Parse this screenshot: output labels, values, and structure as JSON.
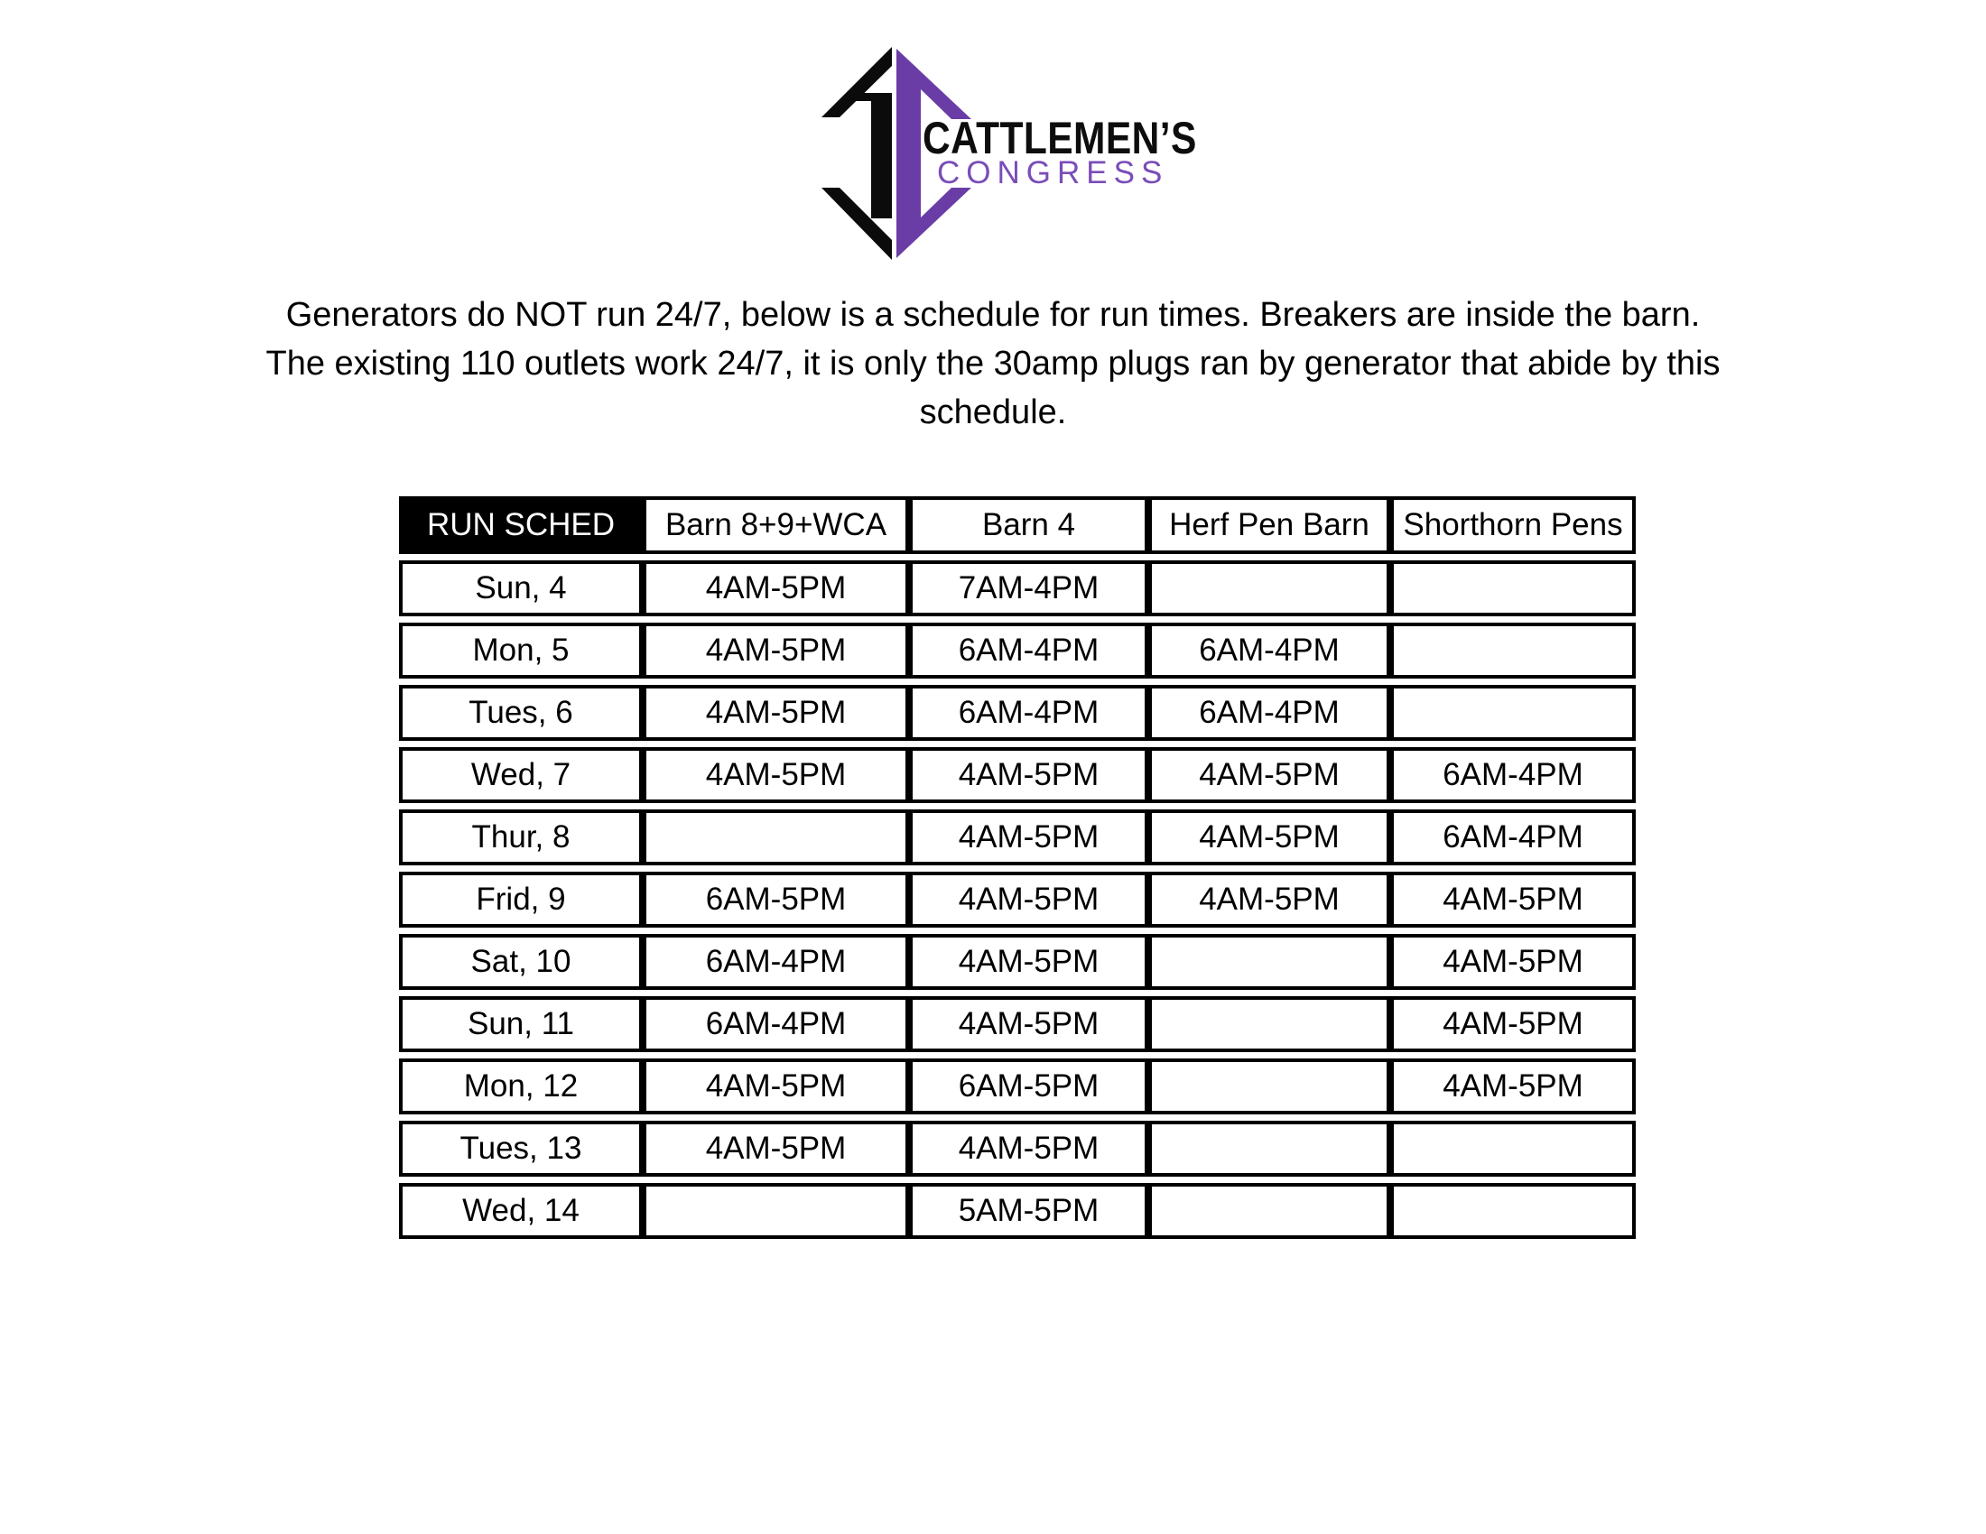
{
  "logo": {
    "brand_top": "CATTLEMEN’S",
    "brand_bottom": "CONGRESS",
    "mark_black": "#0b0b0b",
    "mark_purple": "#6a3da6",
    "congress_purple": "#7a4db8"
  },
  "intro": {
    "lines": [
      "Generators do NOT run 24/7, below is a schedule for run times. Breakers are inside the barn.",
      "The existing 110 outlets work 24/7, it is only the 30amp plugs ran by generator that abide by this",
      "schedule."
    ]
  },
  "table": {
    "headers": [
      "RUN SCHED",
      "Barn 8+9+WCA",
      "Barn 4",
      "Herf Pen Barn",
      "Shorthorn Pens"
    ],
    "rows": [
      {
        "day": "Sun, 4",
        "cells": [
          "4AM-5PM",
          "7AM-4PM",
          "",
          ""
        ]
      },
      {
        "day": "Mon, 5",
        "cells": [
          "4AM-5PM",
          "6AM-4PM",
          "6AM-4PM",
          ""
        ]
      },
      {
        "day": "Tues, 6",
        "cells": [
          "4AM-5PM",
          "6AM-4PM",
          "6AM-4PM",
          ""
        ]
      },
      {
        "day": "Wed, 7",
        "cells": [
          "4AM-5PM",
          "4AM-5PM",
          "4AM-5PM",
          "6AM-4PM"
        ]
      },
      {
        "day": "Thur, 8",
        "cells": [
          "",
          "4AM-5PM",
          "4AM-5PM",
          "6AM-4PM"
        ]
      },
      {
        "day": "Frid, 9",
        "cells": [
          "6AM-5PM",
          "4AM-5PM",
          "4AM-5PM",
          "4AM-5PM"
        ]
      },
      {
        "day": "Sat, 10",
        "cells": [
          "6AM-4PM",
          "4AM-5PM",
          "",
          "4AM-5PM"
        ]
      },
      {
        "day": "Sun, 11",
        "cells": [
          "6AM-4PM",
          "4AM-5PM",
          "",
          "4AM-5PM"
        ]
      },
      {
        "day": "Mon, 12",
        "cells": [
          "4AM-5PM",
          "6AM-5PM",
          "",
          "4AM-5PM"
        ]
      },
      {
        "day": "Tues, 13",
        "cells": [
          "4AM-5PM",
          "4AM-5PM",
          "",
          ""
        ]
      },
      {
        "day": "Wed, 14",
        "cells": [
          "",
          "5AM-5PM",
          "",
          ""
        ]
      }
    ]
  }
}
